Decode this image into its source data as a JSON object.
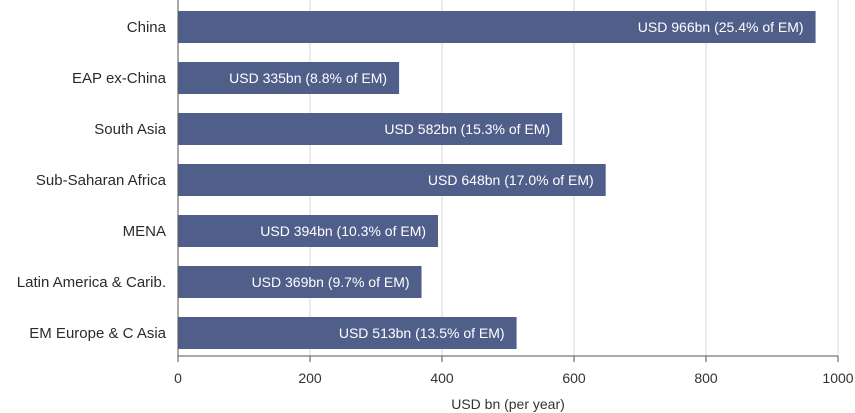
{
  "chart_data": {
    "type": "bar",
    "orientation": "horizontal",
    "categories": [
      "China",
      "EAP ex-China",
      "South Asia",
      "Sub-Saharan Africa",
      "MENA",
      "Latin America & Carib.",
      "EM Europe & C Asia"
    ],
    "values": [
      966,
      335,
      582,
      648,
      394,
      369,
      513
    ],
    "data_labels": [
      "USD 966bn (25.4% of EM)",
      "USD 335bn  (8.8% of EM)",
      "USD 582bn  (15.3% of EM)",
      "USD 648bn  (17.0% of EM)",
      "USD 394bn  (10.3% of EM)",
      "USD 369bn  (9.7% of EM)",
      "USD 513bn  (13.5% of EM)"
    ],
    "xlabel": "USD bn (per year)",
    "ylabel": "",
    "title": "",
    "xlim": [
      0,
      1000
    ],
    "xticks": [
      "0",
      "200",
      "400",
      "600",
      "800",
      "1000"
    ],
    "grid": "vertical",
    "bar_color": "#4f5f8a"
  }
}
